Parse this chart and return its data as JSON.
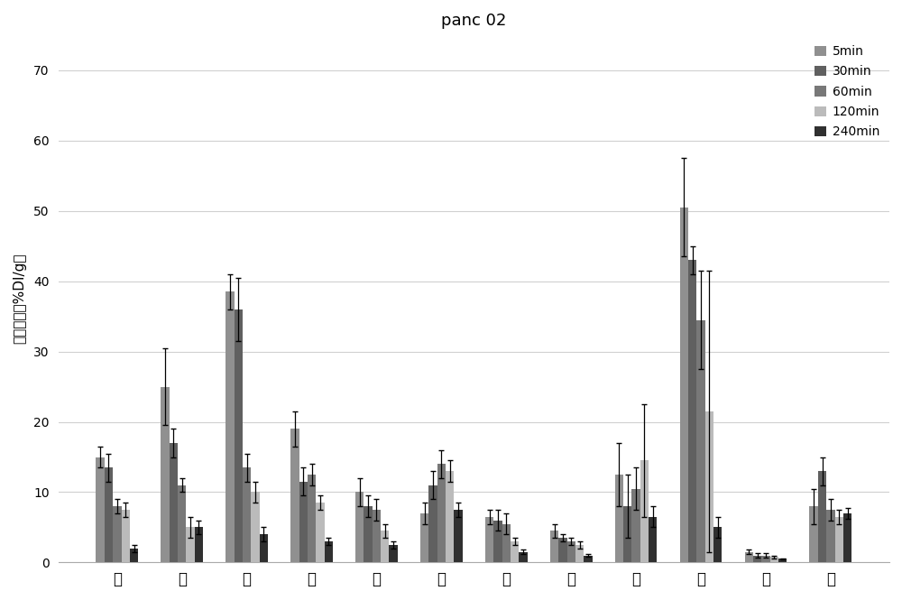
{
  "title": "panc 02",
  "ylabel": "组织摄取（%DI/g）",
  "categories": [
    "心",
    "肝",
    "肺",
    "肾",
    "脾",
    "胃",
    "骨",
    "肉",
    "脂",
    "血",
    "脑",
    "瘤"
  ],
  "legend_labels": [
    "5min",
    "30min",
    "60min",
    "120min",
    "240min"
  ],
  "bar_colors": [
    "#909090",
    "#606060",
    "#787878",
    "#bbbbbb",
    "#303030"
  ],
  "ylim": [
    0,
    75
  ],
  "yticks": [
    0,
    10,
    20,
    30,
    40,
    50,
    60,
    70
  ],
  "values": {
    "5min": [
      15.0,
      25.0,
      38.5,
      19.0,
      10.0,
      7.0,
      6.5,
      4.5,
      12.5,
      50.5,
      1.5,
      8.0
    ],
    "30min": [
      13.5,
      17.0,
      36.0,
      11.5,
      8.0,
      11.0,
      6.0,
      3.5,
      8.0,
      43.0,
      1.0,
      13.0
    ],
    "60min": [
      8.0,
      11.0,
      13.5,
      12.5,
      7.5,
      14.0,
      5.5,
      3.0,
      10.5,
      34.5,
      1.0,
      7.5
    ],
    "120min": [
      7.5,
      5.0,
      10.0,
      8.5,
      4.5,
      13.0,
      3.0,
      2.5,
      14.5,
      21.5,
      0.8,
      6.5
    ],
    "240min": [
      2.0,
      5.0,
      4.0,
      3.0,
      2.5,
      7.5,
      1.5,
      1.0,
      6.5,
      5.0,
      0.5,
      7.0
    ]
  },
  "errors": {
    "5min": [
      1.5,
      5.5,
      2.5,
      2.5,
      2.0,
      1.5,
      1.0,
      1.0,
      4.5,
      7.0,
      0.3,
      2.5
    ],
    "30min": [
      2.0,
      2.0,
      4.5,
      2.0,
      1.5,
      2.0,
      1.5,
      0.5,
      4.5,
      2.0,
      0.3,
      2.0
    ],
    "60min": [
      1.0,
      1.0,
      2.0,
      1.5,
      1.5,
      2.0,
      1.5,
      0.5,
      3.0,
      7.0,
      0.3,
      1.5
    ],
    "120min": [
      1.0,
      1.5,
      1.5,
      1.0,
      1.0,
      1.5,
      0.5,
      0.5,
      8.0,
      20.0,
      0.2,
      1.0
    ],
    "240min": [
      0.5,
      1.0,
      1.0,
      0.5,
      0.5,
      1.0,
      0.3,
      0.2,
      1.5,
      1.5,
      0.1,
      0.8
    ]
  },
  "figsize": [
    10.0,
    6.65
  ],
  "dpi": 100,
  "background_color": "#ffffff"
}
